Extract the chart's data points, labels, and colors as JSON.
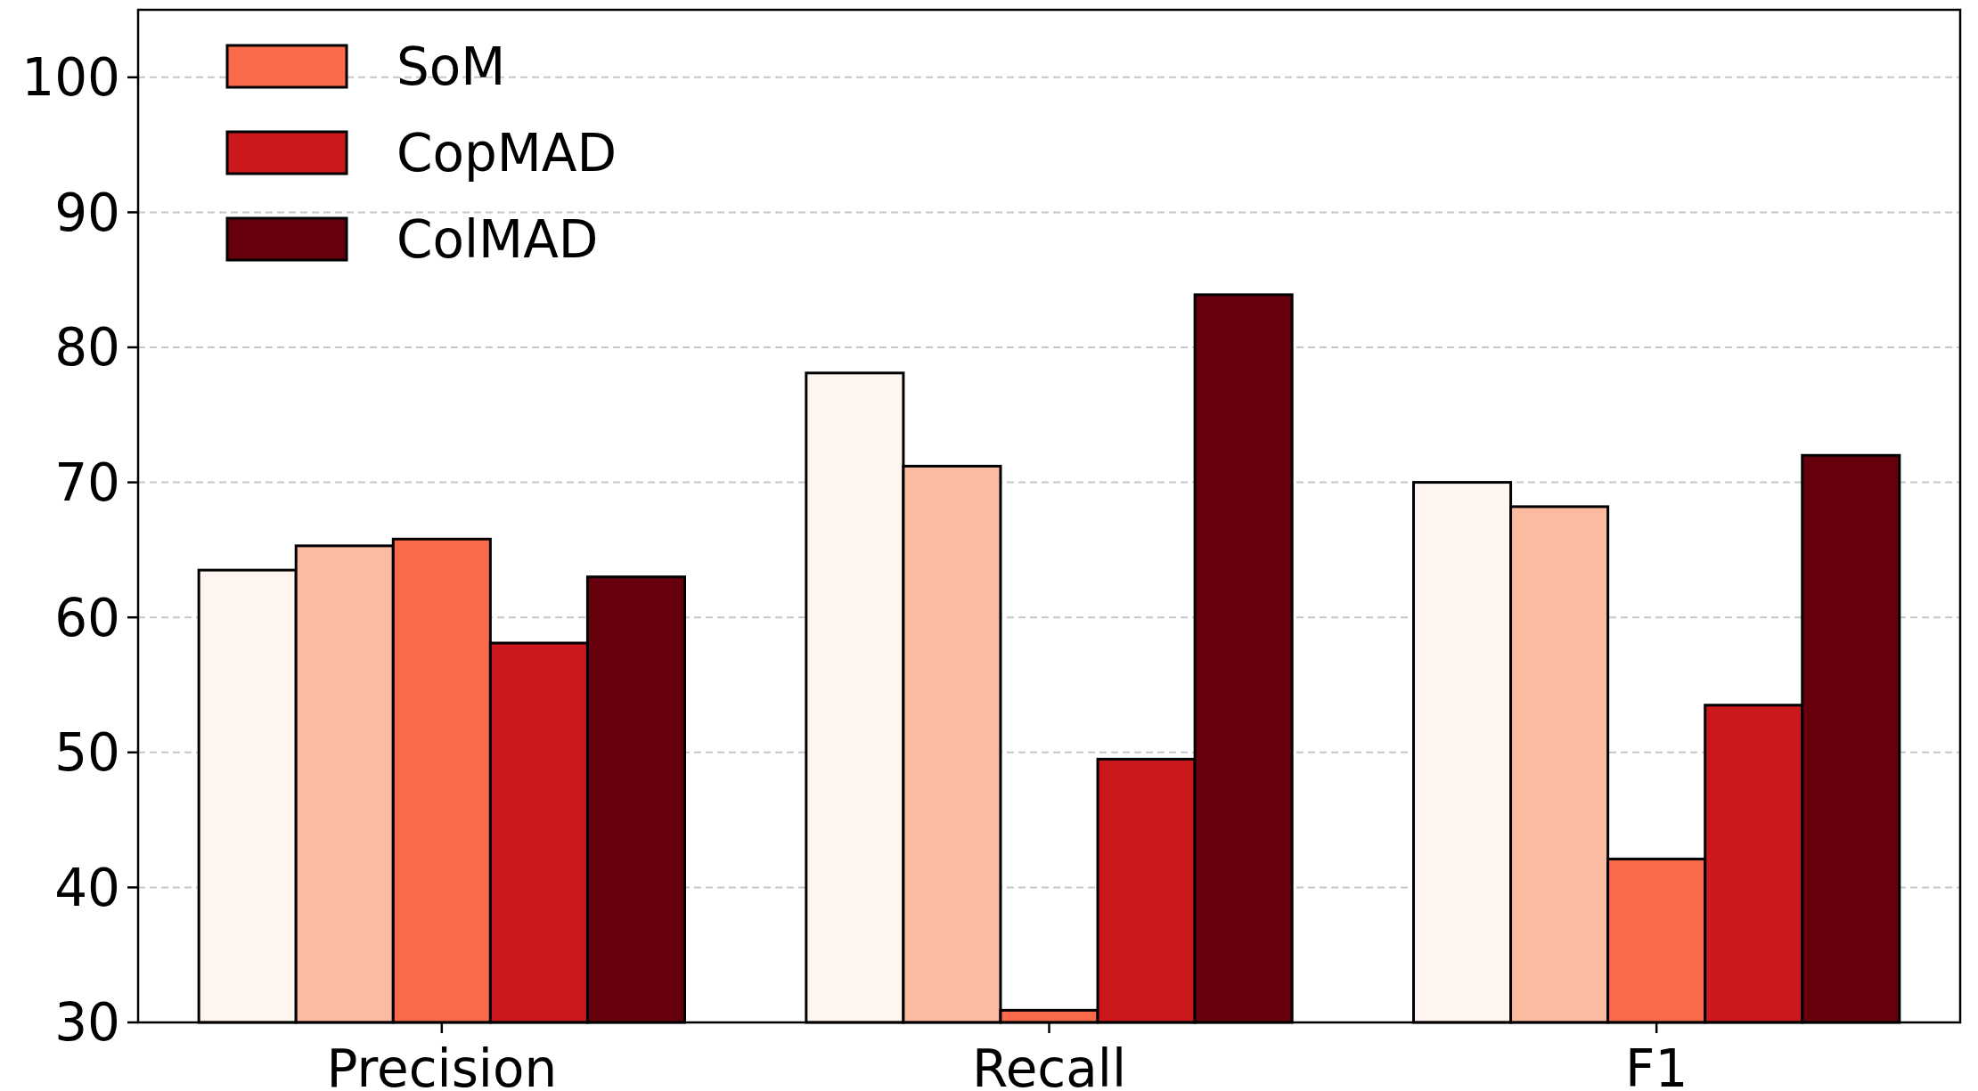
{
  "chart_data": {
    "type": "bar",
    "categories": [
      "Precision",
      "Recall",
      "F1"
    ],
    "series": [
      {
        "color": "#fff5f0",
        "values": [
          63.5,
          78.1,
          70.0
        ]
      },
      {
        "color": "#fcbba1",
        "values": [
          65.3,
          71.2,
          68.2
        ]
      },
      {
        "name": "SoM",
        "color": "#fb6a4a",
        "values": [
          65.8,
          30.9,
          42.1
        ]
      },
      {
        "name": "CopMAD",
        "color": "#cb181d",
        "values": [
          58.1,
          49.5,
          53.5
        ]
      },
      {
        "name": "ColMAD",
        "color": "#67000d",
        "values": [
          63.0,
          83.9,
          72.0
        ]
      }
    ],
    "ylim": [
      30,
      105
    ],
    "yticks": [
      30,
      40,
      50,
      60,
      70,
      80,
      90,
      100
    ],
    "grid": "y",
    "legend": "top left"
  }
}
